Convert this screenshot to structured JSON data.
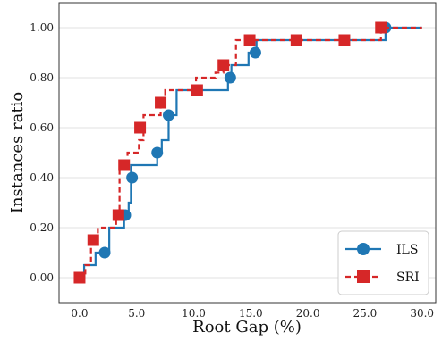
{
  "chart_data": {
    "type": "line",
    "xlabel": "Root Gap (%)",
    "ylabel": "Instances ratio",
    "xlim": [
      -1.8,
      31.2
    ],
    "ylim": [
      -0.1,
      1.1
    ],
    "x_ticks": [
      0.0,
      5.0,
      10.0,
      15.0,
      20.0,
      25.0,
      30.0
    ],
    "x_tick_labels": [
      "0.0",
      "5.0",
      "10.0",
      "15.0",
      "20.0",
      "25.0",
      "30.0"
    ],
    "y_ticks": [
      0.0,
      0.2,
      0.4,
      0.6,
      0.8,
      1.0
    ],
    "y_tick_labels": [
      "0.00",
      "0.20",
      "0.40",
      "0.60",
      "0.80",
      "1.00"
    ],
    "grid": "horizontal",
    "legend_position": "bottom-right",
    "series": [
      {
        "name": "ILS",
        "color": "#1f77b4",
        "line_style": "solid",
        "marker": "circle",
        "step_x": [
          0,
          0.4,
          1.4,
          2.6,
          3.9,
          4.3,
          4.5,
          6.8,
          7.2,
          7.8,
          8.5,
          13.0,
          13.3,
          14.8,
          15.5,
          26.4,
          26.8,
          30.0
        ],
        "step_y": [
          0.0,
          0.05,
          0.1,
          0.2,
          0.25,
          0.3,
          0.45,
          0.5,
          0.55,
          0.65,
          0.75,
          0.8,
          0.85,
          0.9,
          0.95,
          0.95,
          1.0,
          1.0
        ],
        "marker_x": [
          0,
          2.2,
          4.0,
          4.6,
          6.8,
          7.8,
          13.2,
          15.4,
          26.8
        ],
        "marker_y": [
          0.0,
          0.1,
          0.25,
          0.4,
          0.5,
          0.65,
          0.8,
          0.9,
          1.0
        ]
      },
      {
        "name": "SRI",
        "color": "#d62728",
        "line_style": "dashed",
        "marker": "square",
        "step_x": [
          0,
          0.5,
          1.0,
          1.6,
          3.2,
          3.5,
          4.2,
          5.2,
          5.6,
          7.1,
          7.5,
          10.2,
          11.9,
          12.6,
          13.7,
          26.4,
          30.0
        ],
        "step_y": [
          0.0,
          0.05,
          0.15,
          0.2,
          0.25,
          0.45,
          0.5,
          0.55,
          0.65,
          0.7,
          0.75,
          0.8,
          0.82,
          0.85,
          0.95,
          1.0,
          1.0
        ],
        "marker_x": [
          0,
          1.2,
          3.4,
          3.9,
          5.3,
          7.1,
          10.3,
          12.6,
          14.9,
          19.0,
          23.2,
          26.4
        ],
        "marker_y": [
          0.0,
          0.15,
          0.25,
          0.45,
          0.6,
          0.7,
          0.75,
          0.85,
          0.95,
          0.95,
          0.95,
          1.0
        ]
      }
    ]
  }
}
